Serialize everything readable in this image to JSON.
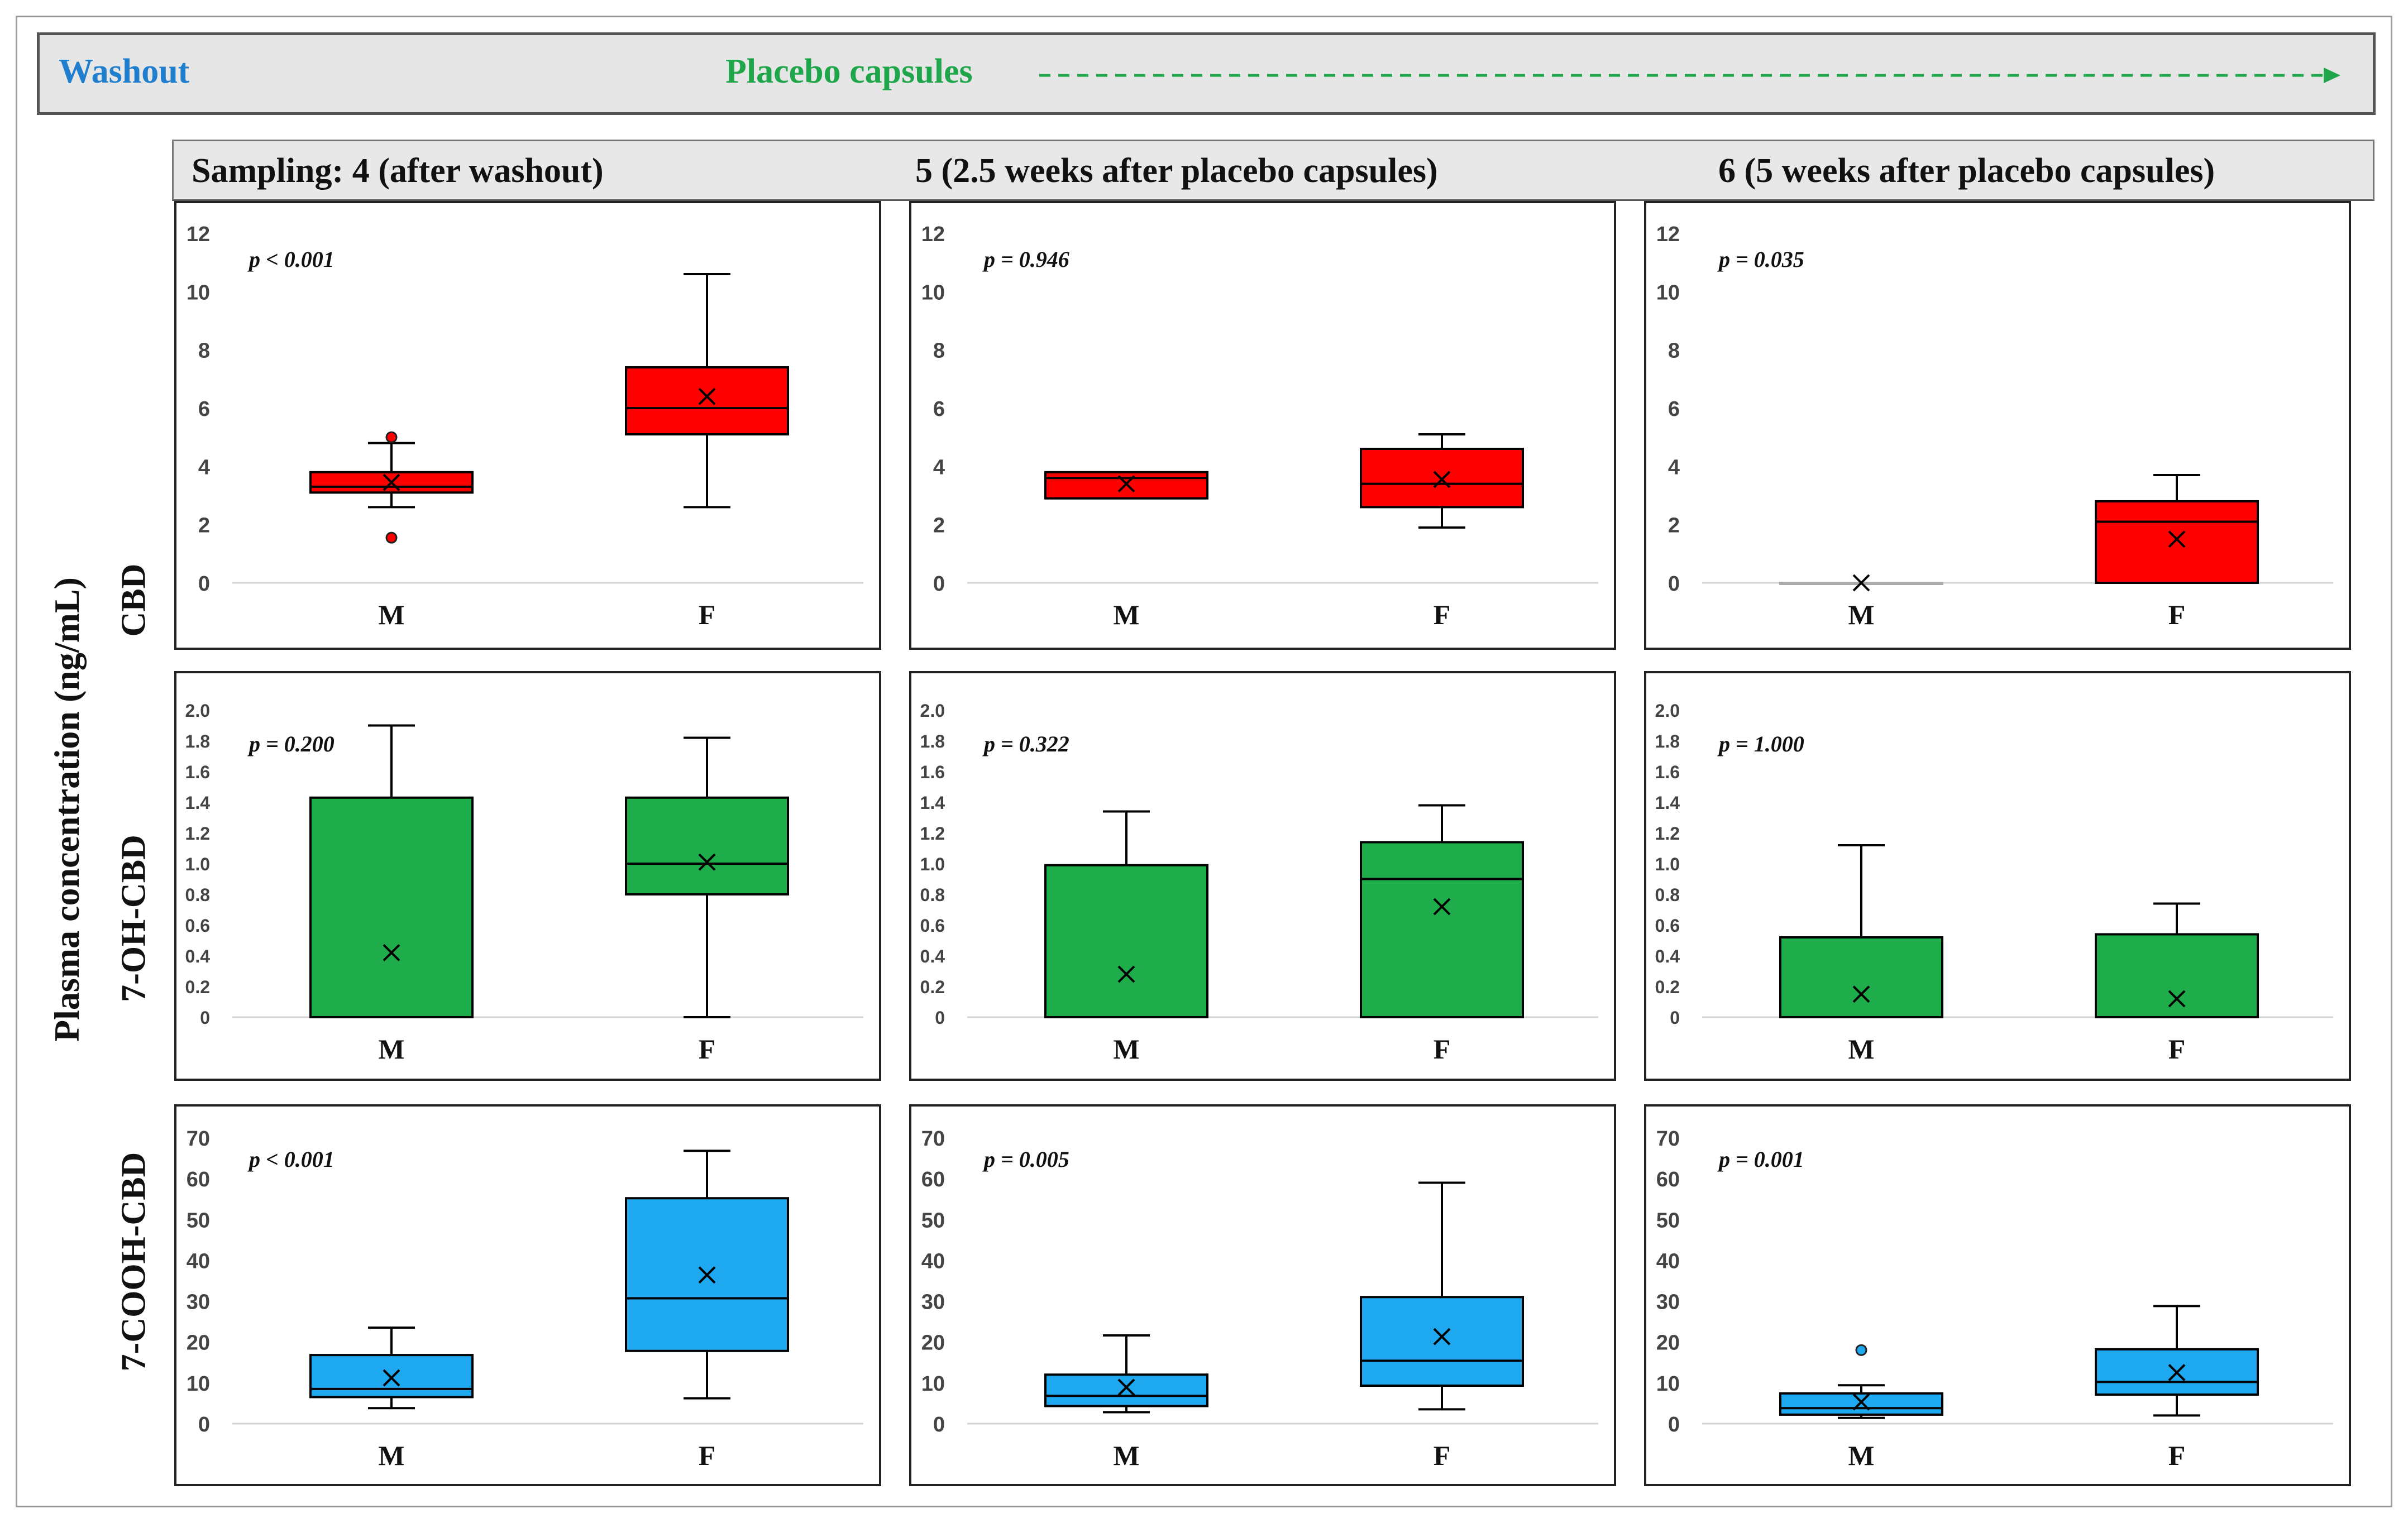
{
  "banner": {
    "washout": "Washout",
    "placebo": "Placebo capsules",
    "washout_color": "#1f7fce",
    "placebo_color": "#1fa64a"
  },
  "columns": [
    "Sampling: 4 (after washout)",
    "5  (2.5 weeks after placebo capsules)",
    "6 (5 weeks after placebo capsules)"
  ],
  "y_axis_label": "Plasma concentration  (ng/mL)",
  "rows": [
    "CBD",
    "7-OH-CBD",
    "7-COOH-CBD"
  ],
  "chart_data": [
    {
      "type": "box",
      "row": "CBD",
      "column": "Sampling: 4 (after washout)",
      "pvalue": "p <  0.001",
      "color": "#ff0000",
      "yticks": [
        "0",
        "2",
        "4",
        "6",
        "8",
        "10",
        "12"
      ],
      "ylim": [
        0,
        12
      ],
      "categories": [
        "M",
        "F"
      ],
      "boxes": [
        {
          "category": "M",
          "min": 2.6,
          "q1": 3.1,
          "median": 3.3,
          "q3": 3.8,
          "max": 4.8,
          "mean": 3.45,
          "outliers": [
            5.0,
            1.55
          ]
        },
        {
          "category": "F",
          "min": 2.6,
          "q1": 5.1,
          "median": 6.0,
          "q3": 7.4,
          "max": 10.6,
          "mean": 6.4,
          "outliers": []
        }
      ]
    },
    {
      "type": "box",
      "row": "CBD",
      "column": "5  (2.5 weeks after placebo capsules)",
      "pvalue": "p = 0.946",
      "color": "#ff0000",
      "yticks": [
        "0",
        "2",
        "4",
        "6",
        "8",
        "10",
        "12"
      ],
      "ylim": [
        0,
        12
      ],
      "categories": [
        "M",
        "F"
      ],
      "boxes": [
        {
          "category": "M",
          "min": 2.9,
          "q1": 2.9,
          "median": 3.6,
          "q3": 3.8,
          "max": 3.8,
          "mean": 3.4,
          "outliers": []
        },
        {
          "category": "F",
          "min": 1.9,
          "q1": 2.6,
          "median": 3.4,
          "q3": 4.6,
          "max": 5.1,
          "mean": 3.55,
          "outliers": []
        }
      ]
    },
    {
      "type": "box",
      "row": "CBD",
      "column": "6 (5 weeks after placebo capsules)",
      "pvalue": "p = 0.035",
      "color": "#ff0000",
      "yticks": [
        "0",
        "2",
        "4",
        "6",
        "8",
        "10",
        "12"
      ],
      "ylim": [
        0,
        12
      ],
      "categories": [
        "M",
        "F"
      ],
      "boxes": [
        {
          "category": "M",
          "min": 0,
          "q1": 0,
          "median": 0,
          "q3": 0,
          "max": 0,
          "mean": 0,
          "outliers": []
        },
        {
          "category": "F",
          "min": 0,
          "q1": 0,
          "median": 2.1,
          "q3": 2.8,
          "max": 3.7,
          "mean": 1.5,
          "outliers": []
        }
      ]
    },
    {
      "type": "box",
      "row": "7-OH-CBD",
      "column": "Sampling: 4 (after washout)",
      "pvalue": "p = 0.200",
      "color": "#1fac4a",
      "yticks": [
        "0",
        "0.2",
        "0.4",
        "0.6",
        "0.8",
        "1.0",
        "1.2",
        "1.4",
        "1.6",
        "1.8",
        "2.0"
      ],
      "ylim": [
        0,
        2.0
      ],
      "categories": [
        "M",
        "F"
      ],
      "boxes": [
        {
          "category": "M",
          "min": 0,
          "q1": 0,
          "median": 0,
          "q3": 1.43,
          "max": 1.9,
          "mean": 0.42,
          "outliers": []
        },
        {
          "category": "F",
          "min": 0,
          "q1": 0.8,
          "median": 1.0,
          "q3": 1.43,
          "max": 1.82,
          "mean": 1.01,
          "outliers": []
        }
      ]
    },
    {
      "type": "box",
      "row": "7-OH-CBD",
      "column": "5  (2.5 weeks after placebo capsules)",
      "pvalue": "p = 0.322",
      "color": "#1fac4a",
      "yticks": [
        "0",
        "0.2",
        "0.4",
        "0.6",
        "0.8",
        "1.0",
        "1.2",
        "1.4",
        "1.6",
        "1.8",
        "2.0"
      ],
      "ylim": [
        0,
        2.0
      ],
      "categories": [
        "M",
        "F"
      ],
      "boxes": [
        {
          "category": "M",
          "min": 0,
          "q1": 0,
          "median": 0,
          "q3": 0.99,
          "max": 1.34,
          "mean": 0.28,
          "outliers": []
        },
        {
          "category": "F",
          "min": 0,
          "q1": 0,
          "median": 0.9,
          "q3": 1.14,
          "max": 1.38,
          "mean": 0.72,
          "outliers": []
        }
      ]
    },
    {
      "type": "box",
      "row": "7-OH-CBD",
      "column": "6 (5 weeks after placebo capsules)",
      "pvalue": "p = 1.000",
      "color": "#1fac4a",
      "yticks": [
        "0",
        "0.2",
        "0.4",
        "0.6",
        "0.8",
        "1.0",
        "1.2",
        "1.4",
        "1.6",
        "1.8",
        "2.0"
      ],
      "ylim": [
        0,
        2.0
      ],
      "categories": [
        "M",
        "F"
      ],
      "boxes": [
        {
          "category": "M",
          "min": 0,
          "q1": 0,
          "median": 0,
          "q3": 0.52,
          "max": 1.12,
          "mean": 0.15,
          "outliers": []
        },
        {
          "category": "F",
          "min": 0,
          "q1": 0,
          "median": 0,
          "q3": 0.54,
          "max": 0.74,
          "mean": 0.12,
          "outliers": []
        }
      ]
    },
    {
      "type": "box",
      "row": "7-COOH-CBD",
      "column": "Sampling: 4 (after washout)",
      "pvalue": "p <  0.001",
      "color": "#1ea8ef",
      "yticks": [
        "0",
        "10",
        "20",
        "30",
        "40",
        "50",
        "60",
        "70"
      ],
      "ylim": [
        0,
        70
      ],
      "categories": [
        "M",
        "F"
      ],
      "boxes": [
        {
          "category": "M",
          "min": 3.8,
          "q1": 6.5,
          "median": 8.5,
          "q3": 16.8,
          "max": 23.5,
          "mean": 11.2,
          "outliers": []
        },
        {
          "category": "F",
          "min": 6.2,
          "q1": 17.8,
          "median": 30.7,
          "q3": 55.2,
          "max": 66.8,
          "mean": 36.4,
          "outliers": []
        }
      ]
    },
    {
      "type": "box",
      "row": "7-COOH-CBD",
      "column": "5  (2.5 weeks after placebo capsules)",
      "pvalue": "p = 0.005",
      "color": "#1ea8ef",
      "yticks": [
        "0",
        "10",
        "20",
        "30",
        "40",
        "50",
        "60",
        "70"
      ],
      "ylim": [
        0,
        70
      ],
      "categories": [
        "M",
        "F"
      ],
      "boxes": [
        {
          "category": "M",
          "min": 2.8,
          "q1": 4.3,
          "median": 6.8,
          "q3": 12.0,
          "max": 21.6,
          "mean": 8.9,
          "outliers": []
        },
        {
          "category": "F",
          "min": 3.5,
          "q1": 9.3,
          "median": 15.4,
          "q3": 31.0,
          "max": 59.0,
          "mean": 21.3,
          "outliers": []
        }
      ]
    },
    {
      "type": "box",
      "row": "7-COOH-CBD",
      "column": "6 (5 weeks after placebo capsules)",
      "pvalue": "p = 0.001",
      "color": "#1ea8ef",
      "yticks": [
        "0",
        "10",
        "20",
        "30",
        "40",
        "50",
        "60",
        "70"
      ],
      "ylim": [
        0,
        70
      ],
      "categories": [
        "M",
        "F"
      ],
      "boxes": [
        {
          "category": "M",
          "min": 1.4,
          "q1": 2.2,
          "median": 3.8,
          "q3": 7.4,
          "max": 9.4,
          "mean": 5.3,
          "outliers": [
            18.0
          ]
        },
        {
          "category": "F",
          "min": 2.0,
          "q1": 7.1,
          "median": 10.2,
          "q3": 18.2,
          "max": 28.8,
          "mean": 12.5,
          "outliers": []
        }
      ]
    }
  ]
}
